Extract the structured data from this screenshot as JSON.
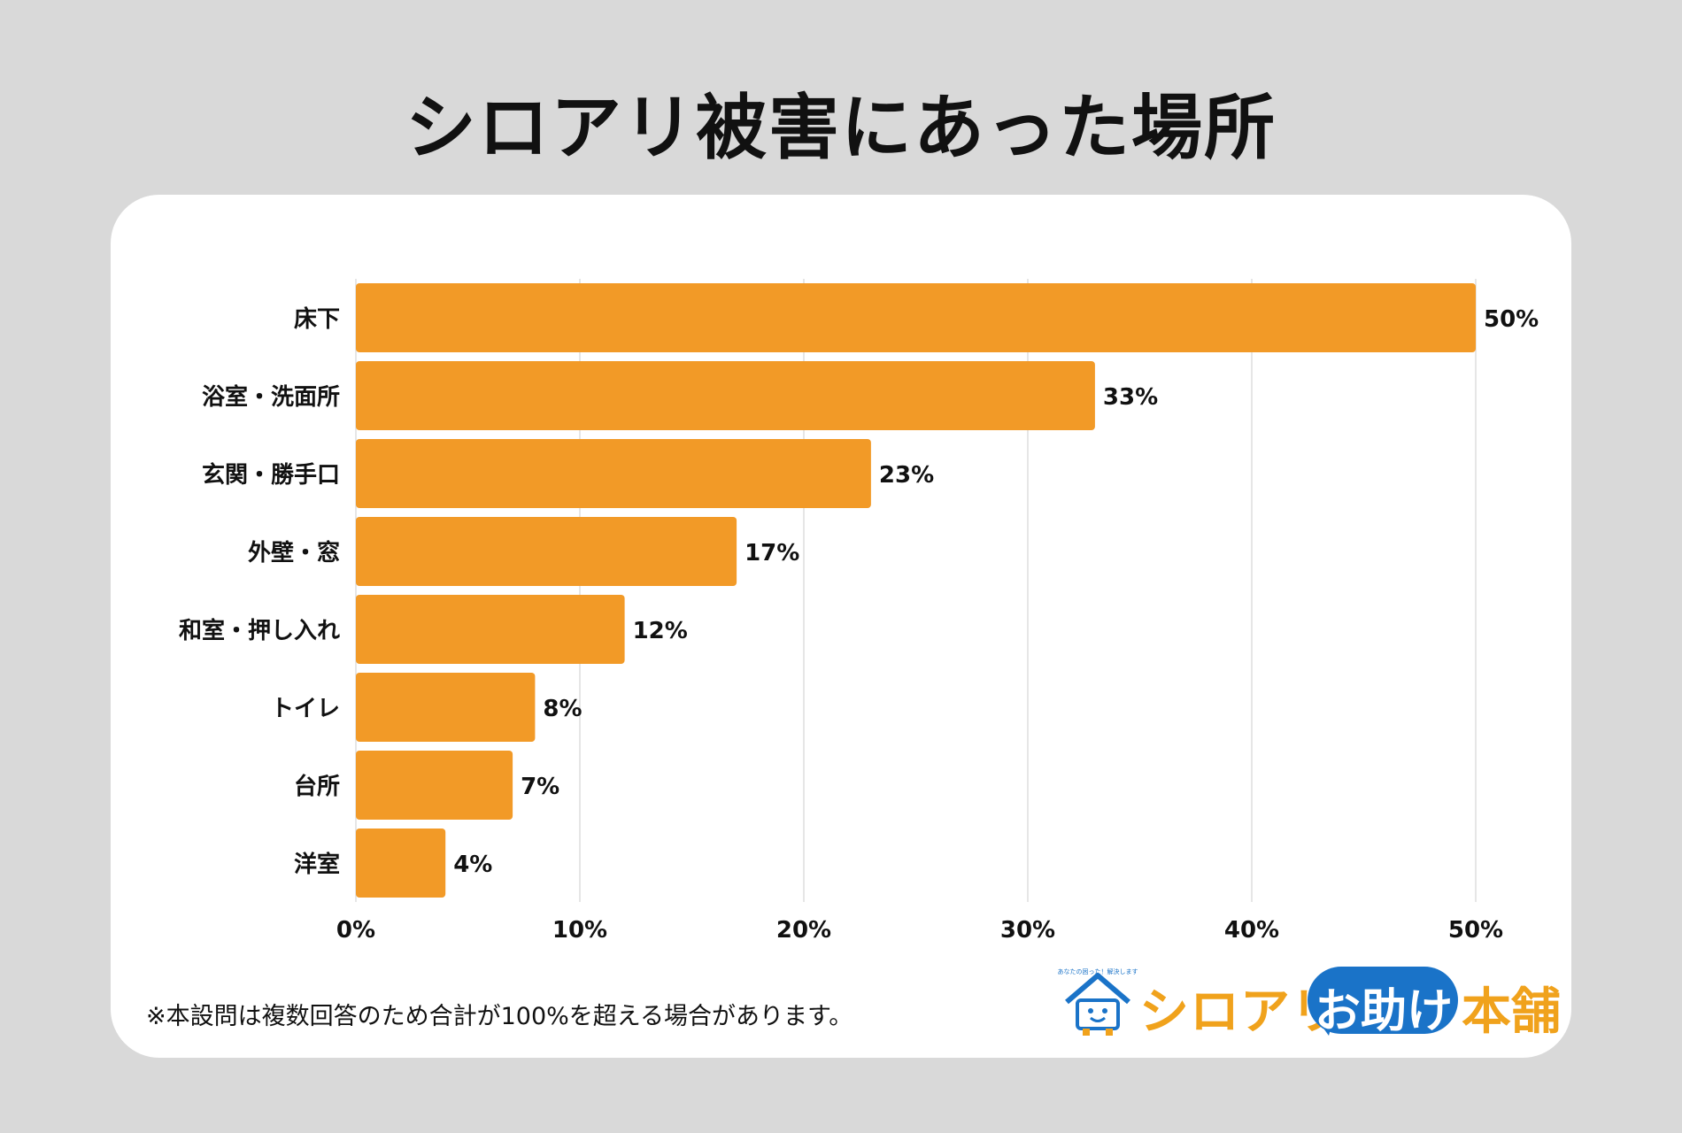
{
  "page": {
    "title": "シロアリ被害にあった場所",
    "note": "※本設問は複数回答のため合計が100%を超える場合があります。",
    "logo": {
      "tagline": "あなたの困った！解決します",
      "brand_part1": "シロアリ",
      "brand_part2": "お助け",
      "brand_part3": "本舗"
    }
  },
  "colors": {
    "bar": "#f29a27",
    "grid": "#dddddd",
    "text": "#111111",
    "card": "#ffffff",
    "background": "#d9d9d9"
  },
  "chart_data": {
    "type": "bar",
    "orientation": "horizontal",
    "title": "シロアリ被害にあった場所",
    "categories": [
      "床下",
      "浴室・洗面所",
      "玄関・勝手口",
      "外壁・窓",
      "和室・押し入れ",
      "トイレ",
      "台所",
      "洋室"
    ],
    "values": [
      50,
      33,
      23,
      17,
      12,
      8,
      7,
      4
    ],
    "value_labels": [
      "50%",
      "33%",
      "23%",
      "17%",
      "12%",
      "8%",
      "7%",
      "4%"
    ],
    "x_ticks": [
      0,
      10,
      20,
      30,
      40,
      50
    ],
    "x_tick_labels": [
      "0%",
      "10%",
      "20%",
      "30%",
      "40%",
      "50%"
    ],
    "xlim": [
      0,
      50
    ],
    "grid": "vertical",
    "legend": "none"
  }
}
